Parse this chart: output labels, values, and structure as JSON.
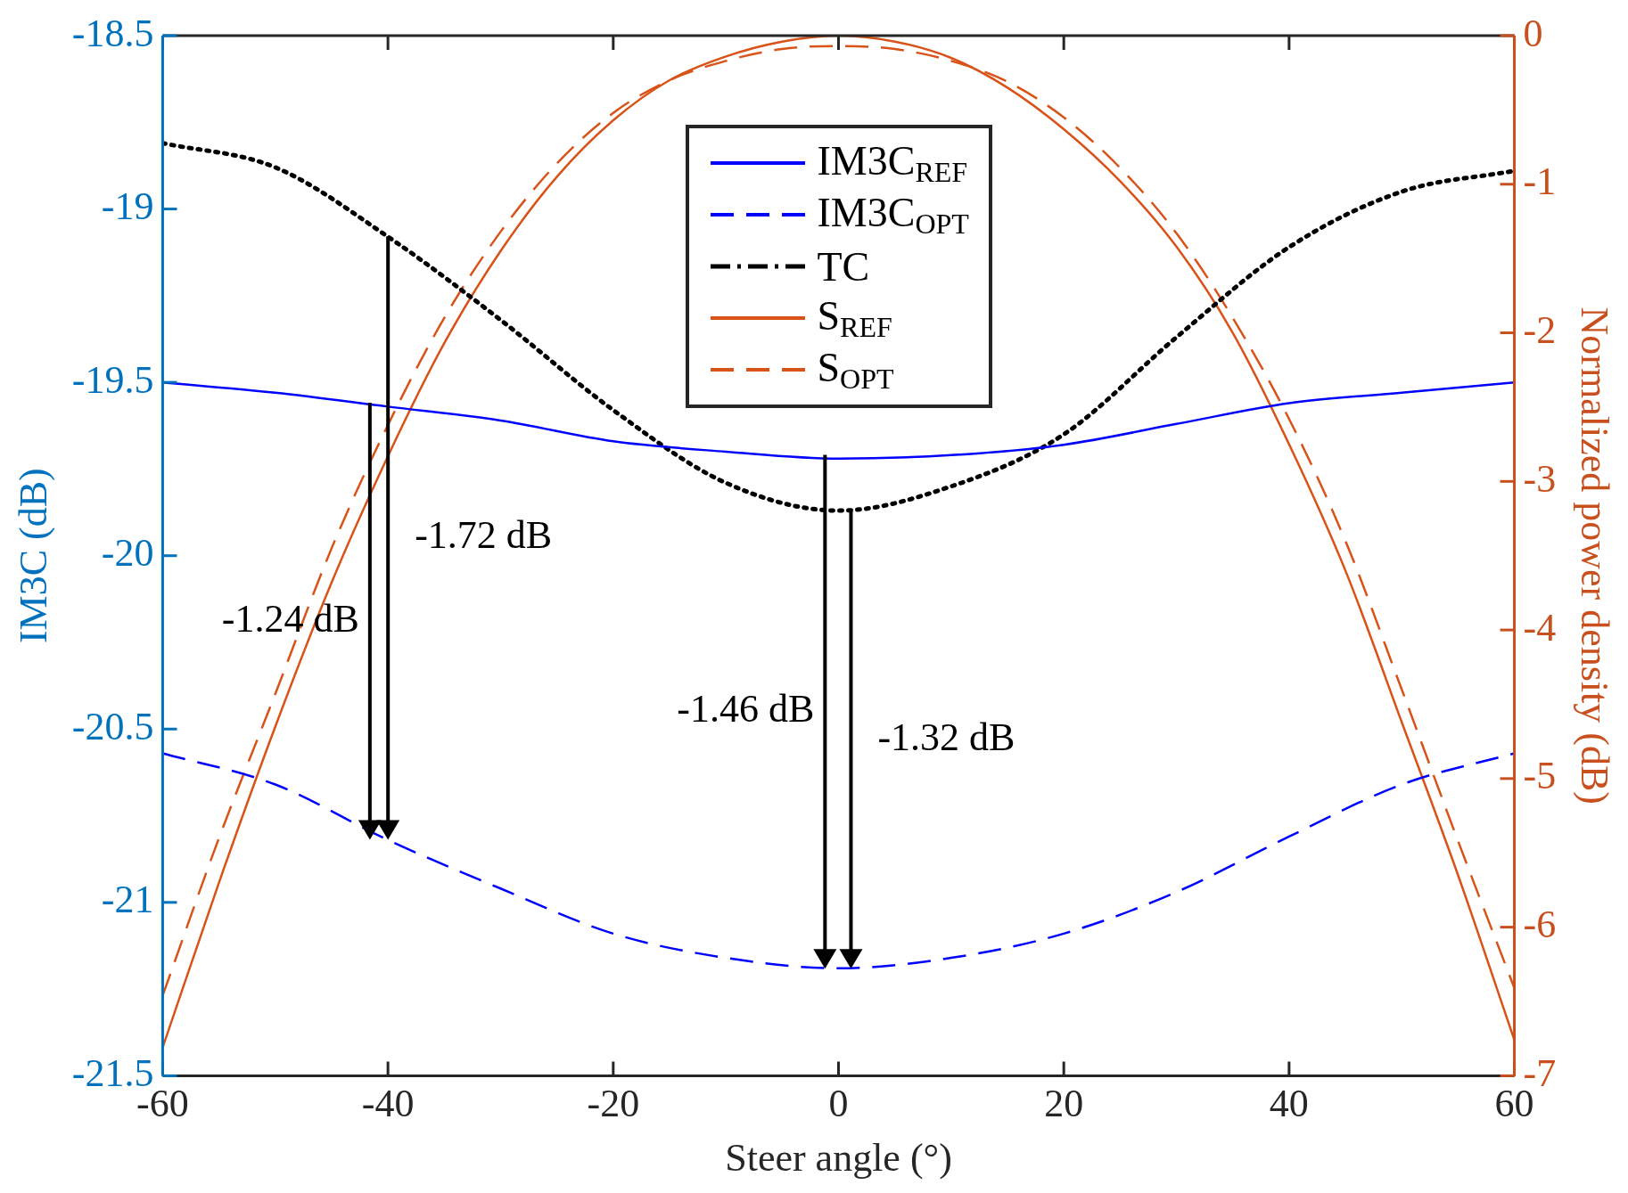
{
  "chart_data": {
    "type": "line",
    "xlabel": "Steer angle (°)",
    "ylabel": "IM3C (dB)",
    "y2label": "Normalized power density (dB)",
    "x": [
      -60,
      -50,
      -40,
      -30,
      -20,
      -10,
      0,
      10,
      20,
      30,
      40,
      50,
      60
    ],
    "series": [
      {
        "name": "IM3C$_{REF}$",
        "color": "#0000ff",
        "line_style": "solid",
        "values": [
          -19.5,
          -19.53,
          -19.57,
          -19.61,
          -19.67,
          -19.7,
          -19.72,
          -19.71,
          -19.68,
          -19.62,
          -19.56,
          -19.53,
          -19.5
        ]
      },
      {
        "name": "IM3C$_{OPT}$",
        "color": "#0000ff",
        "line_style": "dashed",
        "values": [
          -20.57,
          -20.66,
          -20.82,
          -20.96,
          -21.09,
          -21.16,
          -21.19,
          -21.16,
          -21.09,
          -20.97,
          -20.81,
          -20.66,
          -20.57
        ]
      },
      {
        "name": "TC",
        "color": "#000000",
        "line_style": "dotted",
        "values": [
          -18.81,
          -18.88,
          -19.08,
          -19.32,
          -19.58,
          -19.79,
          -19.87,
          -19.8,
          -19.65,
          -19.37,
          -19.11,
          -18.95,
          -18.89
        ]
      },
      {
        "name": "S$_{REF}$",
        "color": "#d95319",
        "line_style": "solid",
        "axis": "y2",
        "x": [
          -60,
          -55,
          -50,
          -45,
          -40,
          -35,
          -30,
          -25,
          -20,
          -15,
          -10,
          -5,
          0,
          5,
          10,
          15,
          20,
          25,
          30,
          35,
          40,
          45,
          50,
          55,
          60
        ],
        "values": [
          -6.81,
          -5.7,
          -4.65,
          -3.68,
          -2.83,
          -2.07,
          -1.45,
          -0.95,
          -0.57,
          -0.3,
          -0.14,
          -0.04,
          0,
          -0.04,
          -0.15,
          -0.35,
          -0.63,
          -0.98,
          -1.42,
          -2.0,
          -2.75,
          -3.6,
          -4.62,
          -5.65,
          -6.76
        ]
      },
      {
        "name": "S$_{OPT}$",
        "color": "#d95319",
        "line_style": "dashed",
        "axis": "y2",
        "x": [
          -60,
          -55,
          -50,
          -45,
          -40,
          -35,
          -30,
          -25,
          -20,
          -15,
          -10,
          -5,
          0,
          5,
          10,
          15,
          20,
          25,
          30,
          35,
          40,
          45,
          50,
          55,
          60
        ],
        "values": [
          -6.46,
          -5.4,
          -4.43,
          -3.45,
          -2.62,
          -1.9,
          -1.32,
          -0.86,
          -0.52,
          -0.3,
          -0.17,
          -0.09,
          -0.07,
          -0.09,
          -0.17,
          -0.31,
          -0.55,
          -0.89,
          -1.33,
          -1.9,
          -2.58,
          -3.4,
          -4.4,
          -5.42,
          -6.41
        ]
      }
    ],
    "annotations": [
      "-1.24 dB",
      "-1.72 dB",
      "-1.46 dB",
      "-1.32 dB"
    ],
    "xlim": [
      -60,
      60
    ],
    "xticks": [
      -60,
      -40,
      -20,
      0,
      20,
      40,
      60
    ],
    "ylim": [
      -21.5,
      -18.5
    ],
    "yticks": [
      -21.5,
      -21,
      -20.5,
      -20,
      -19.5,
      -19,
      -18.5
    ],
    "y2lim": [
      -7,
      0
    ],
    "y2ticks": [
      -7,
      -6,
      -5,
      -4,
      -3,
      -2,
      -1,
      0
    ],
    "grid": false,
    "legend": "top",
    "marker": "none"
  }
}
